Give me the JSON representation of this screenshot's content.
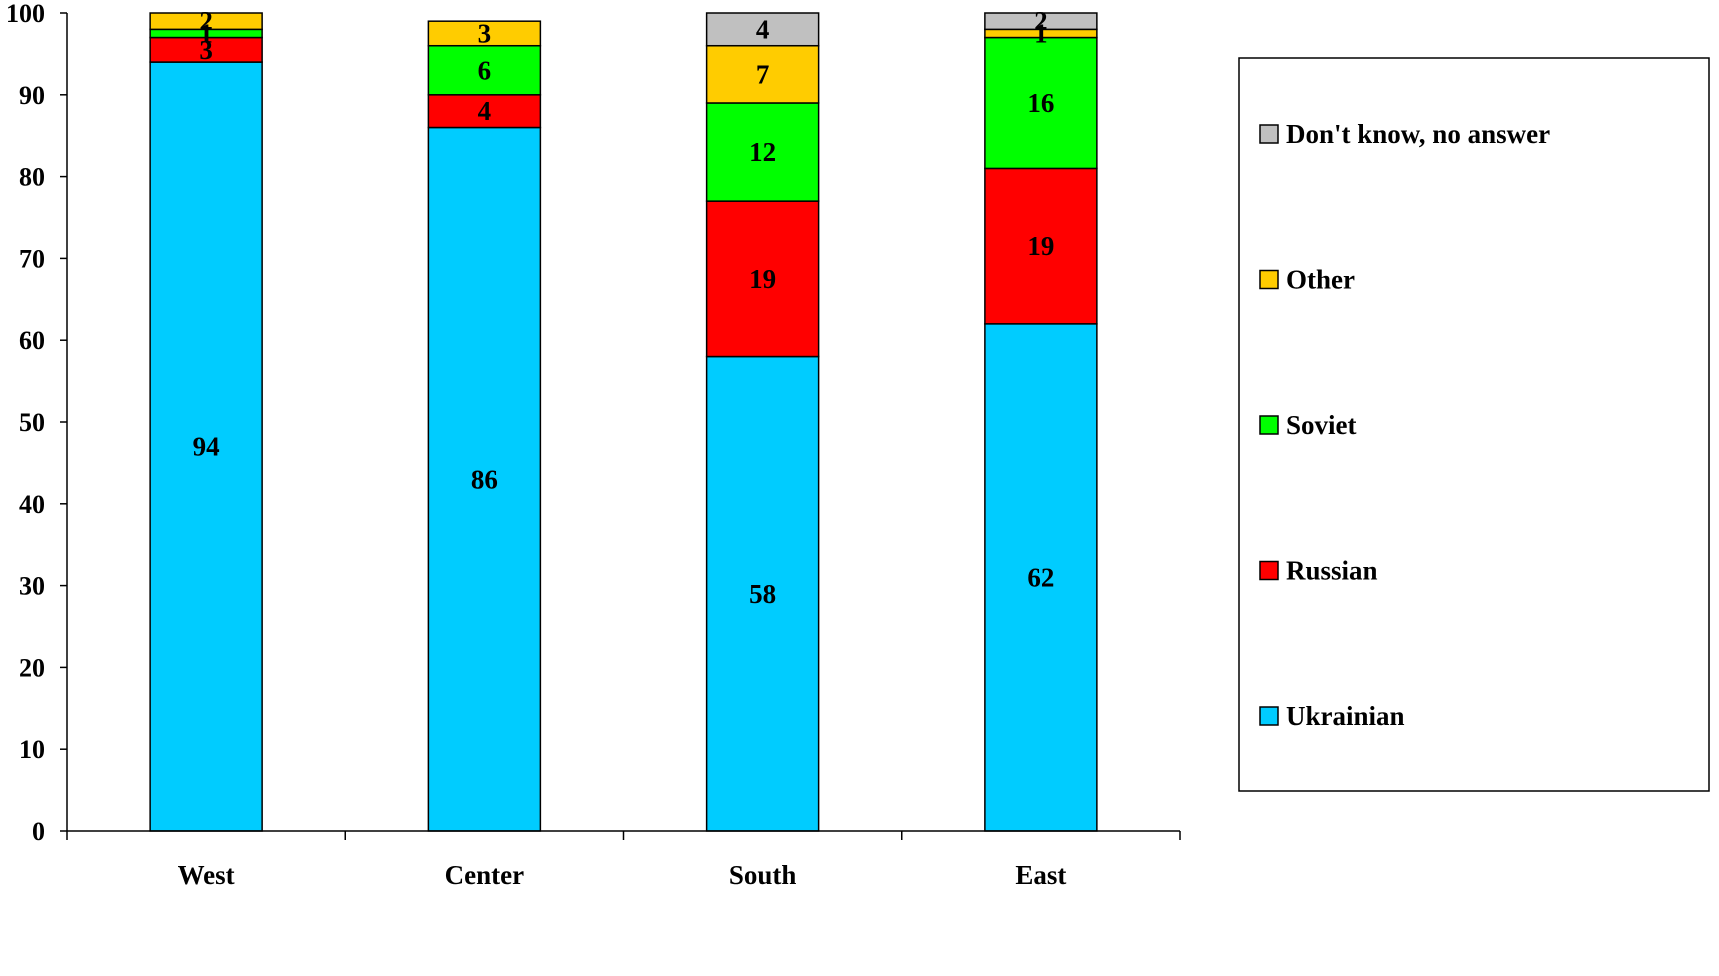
{
  "chart_data": {
    "type": "bar",
    "stacked": true,
    "categories": [
      "West",
      "Center",
      "South",
      "East"
    ],
    "series": [
      {
        "name": "Ukrainian",
        "color": "#00CCFF",
        "values": [
          94,
          86,
          58,
          62
        ]
      },
      {
        "name": "Russian",
        "color": "#FF0000",
        "values": [
          3,
          4,
          19,
          19
        ]
      },
      {
        "name": "Soviet",
        "color": "#00FF00",
        "values": [
          1,
          6,
          12,
          16
        ]
      },
      {
        "name": "Other",
        "color": "#FFCC00",
        "values": [
          2,
          3,
          7,
          1
        ]
      },
      {
        "name": "Don't know, no answer",
        "color": "#C0C0C0",
        "values": [
          0,
          0,
          4,
          2
        ]
      }
    ],
    "ylim": [
      0,
      100
    ],
    "yticks": [
      0,
      10,
      20,
      30,
      40,
      50,
      60,
      70,
      80,
      90,
      100
    ],
    "title": "",
    "xlabel": "",
    "ylabel": "",
    "grid": false,
    "legend_position": "right",
    "legend_order": [
      "Don't know, no answer",
      "Other",
      "Soviet",
      "Russian",
      "Ukrainian"
    ]
  }
}
